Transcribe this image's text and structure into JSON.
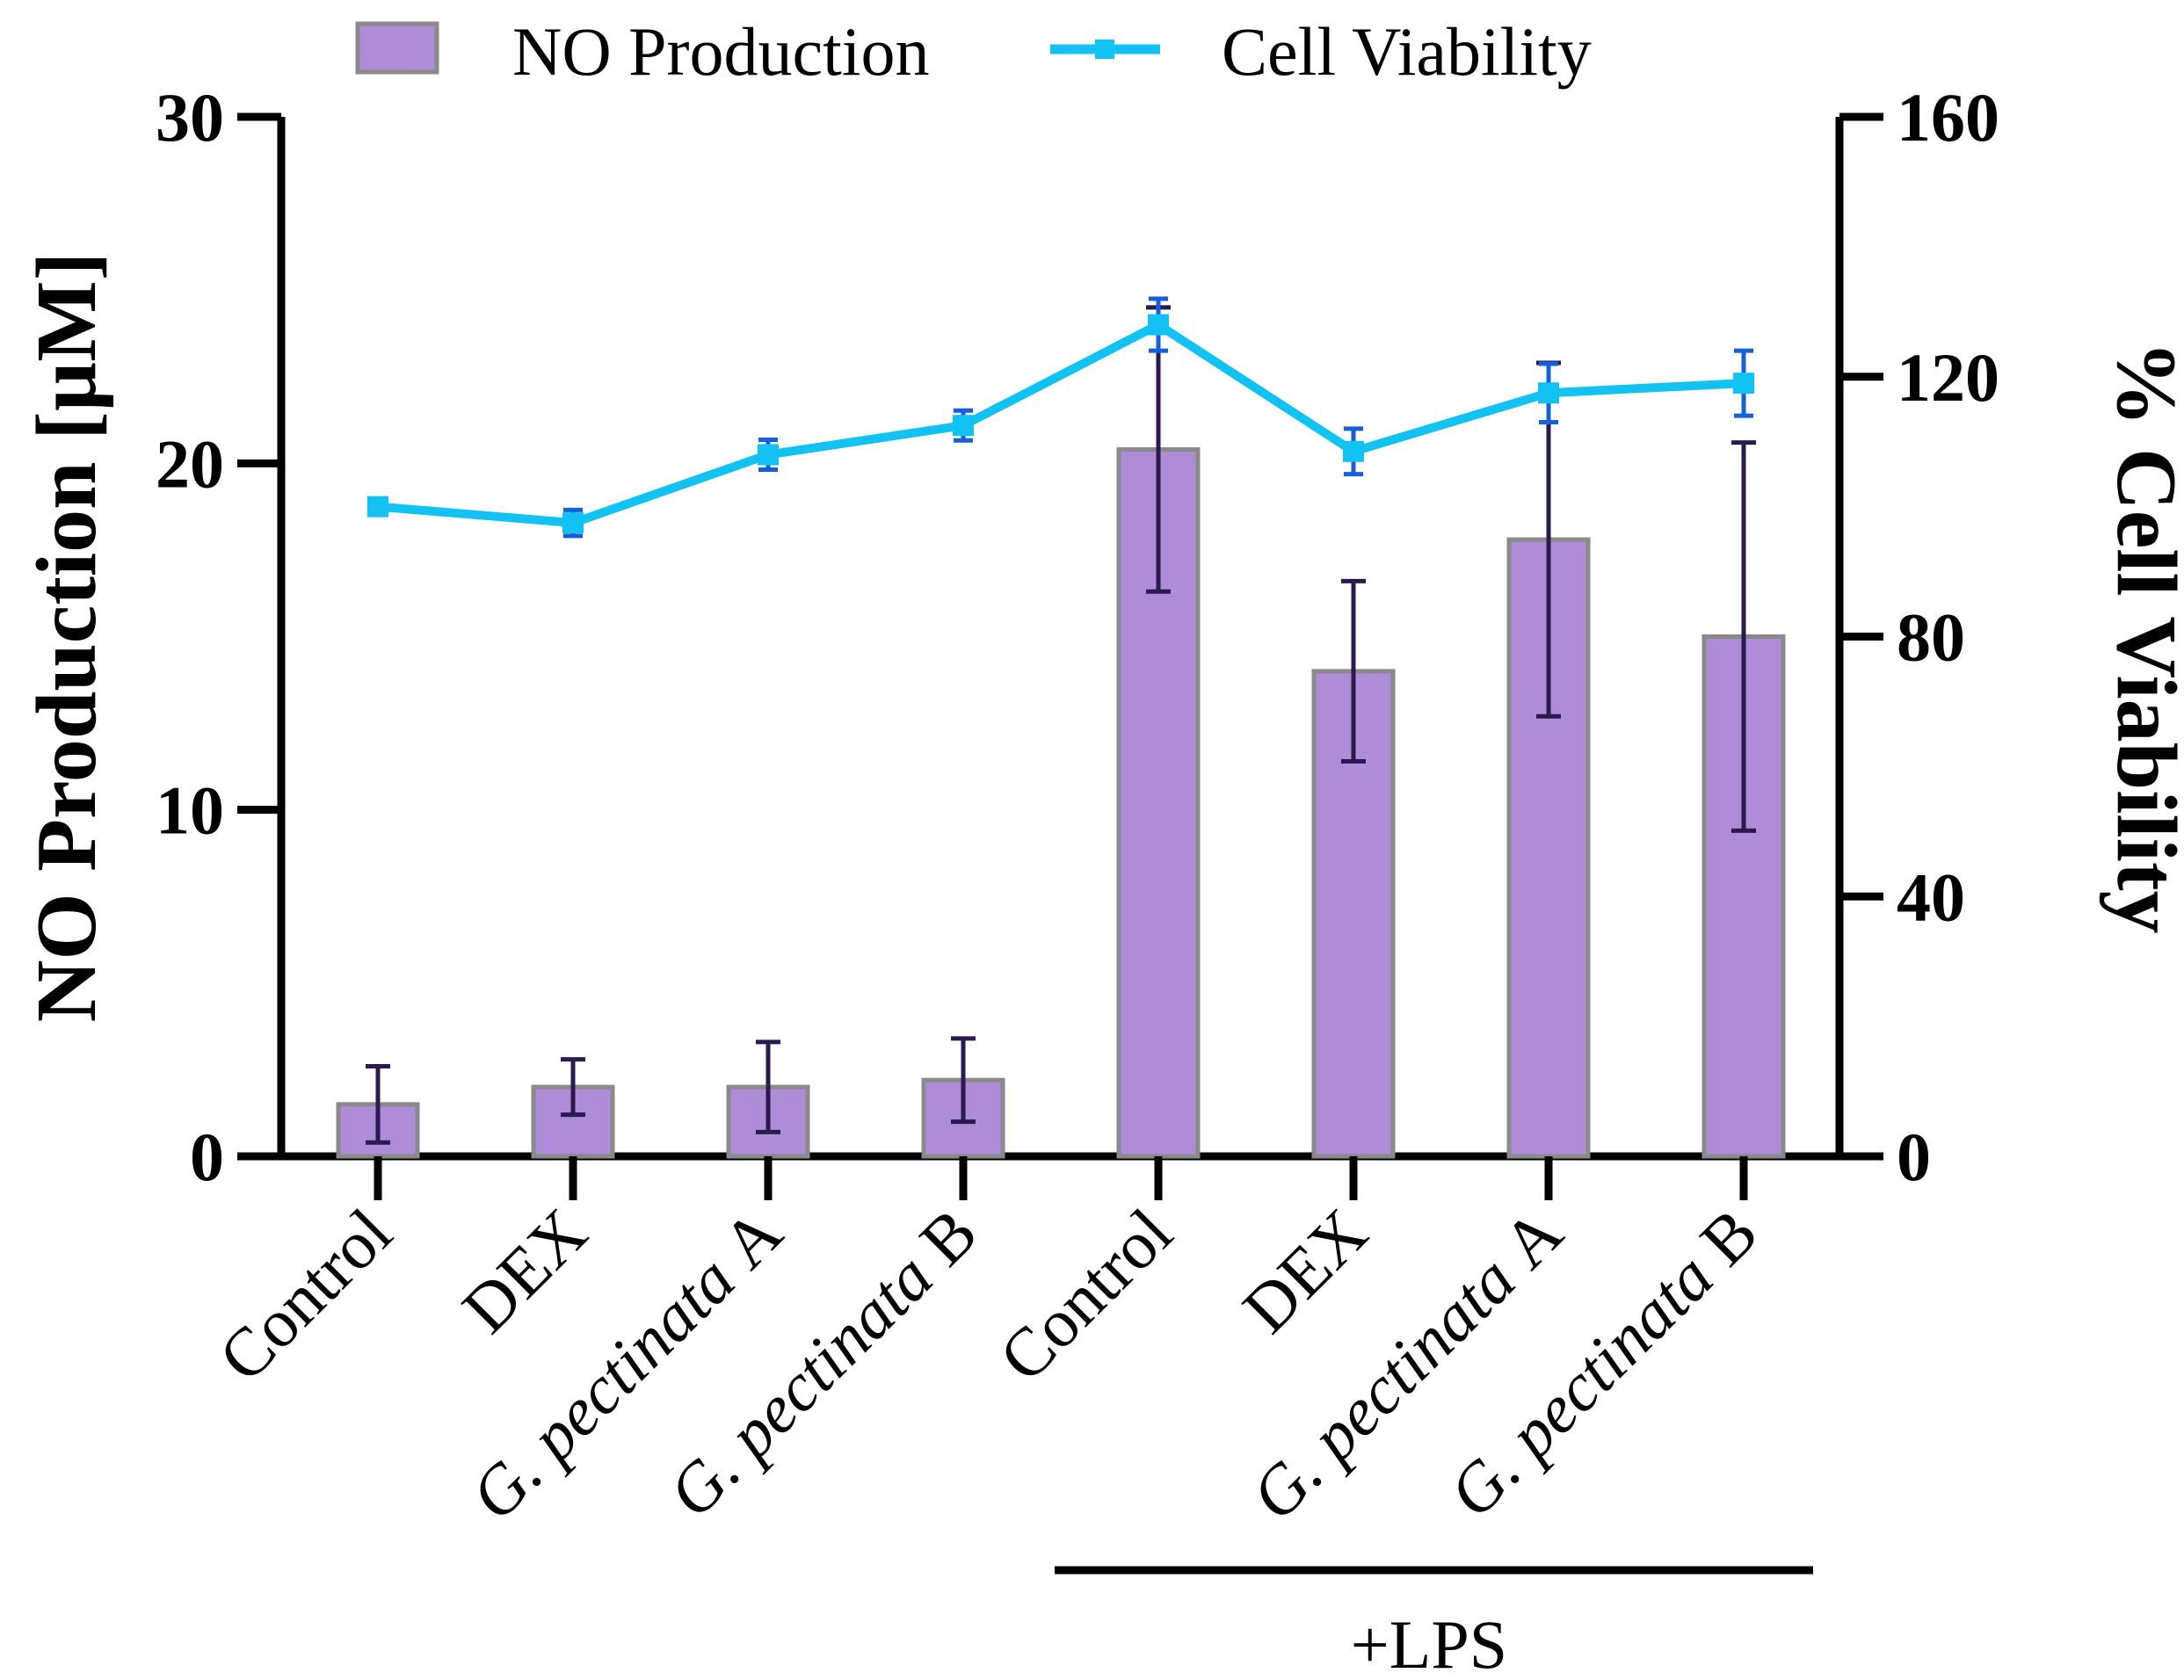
{
  "chart_data": {
    "type": "bar+line",
    "categories": [
      {
        "label": "Control",
        "species": "",
        "suffix": ""
      },
      {
        "label": "DEX",
        "species": "",
        "suffix": ""
      },
      {
        "label": "",
        "species": "G. pectinata",
        "suffix": " A"
      },
      {
        "label": "",
        "species": "G. pectinata",
        "suffix": " B"
      },
      {
        "label": "Control",
        "species": "",
        "suffix": ""
      },
      {
        "label": "DEX",
        "species": "",
        "suffix": ""
      },
      {
        "label": "",
        "species": "G. pectinata",
        "suffix": " A"
      },
      {
        "label": "",
        "species": "G. pectinata",
        "suffix": " B"
      }
    ],
    "series": [
      {
        "name": "NO Production",
        "type": "bar",
        "axis": "left",
        "color": "#AF8CD8",
        "edge_color": "#8A8A8A",
        "error_color": "#2A1A50",
        "values": [
          1.5,
          2.0,
          2.0,
          2.2,
          20.4,
          14.0,
          17.8,
          15.0
        ],
        "errors": [
          1.1,
          0.8,
          1.3,
          1.2,
          4.1,
          2.6,
          5.1,
          5.6
        ]
      },
      {
        "name": "Cell Viability",
        "type": "line",
        "axis": "right",
        "color": "#12C2F2",
        "error_color": "#1560D8",
        "values": [
          100,
          97.5,
          108,
          112.5,
          128,
          108.5,
          117.5,
          119
        ],
        "errors": [
          0,
          2,
          2.3,
          2.3,
          4,
          3.5,
          4.5,
          5
        ]
      }
    ],
    "left_axis": {
      "title": "NO Production [µM]",
      "min": 0,
      "max": 30,
      "ticks": [
        "0",
        "10",
        "20",
        "30"
      ]
    },
    "right_axis": {
      "title": "% Cell Viability",
      "min": 0,
      "max": 160,
      "ticks": [
        "0",
        "40",
        "80",
        "120",
        "160"
      ]
    },
    "group_label": "+LPS",
    "legend": {
      "position": "top",
      "entries": [
        "NO Production",
        "Cell Viability"
      ]
    }
  }
}
